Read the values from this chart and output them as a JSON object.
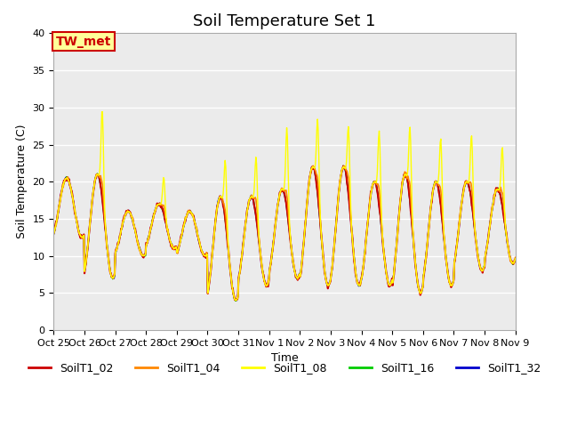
{
  "title": "Soil Temperature Set 1",
  "xlabel": "Time",
  "ylabel": "Soil Temperature (C)",
  "ylim": [
    0,
    40
  ],
  "series_labels": [
    "SoilT1_02",
    "SoilT1_04",
    "SoilT1_08",
    "SoilT1_16",
    "SoilT1_32"
  ],
  "series_colors": [
    "#cc0000",
    "#ff8800",
    "#ffff00",
    "#00cc00",
    "#0000cc"
  ],
  "xtick_labels": [
    "Oct 25",
    "Oct 26",
    "Oct 27",
    "Oct 28",
    "Oct 29",
    "Oct 30",
    "Oct 31",
    "Nov 1",
    "Nov 2",
    "Nov 3",
    "Nov 4",
    "Nov 5",
    "Nov 6",
    "Nov 7",
    "Nov 8",
    "Nov 9"
  ],
  "n_days": 15,
  "n_per_day": 48,
  "annotation_text": "TW_met",
  "annotation_color": "#cc0000",
  "annotation_bg": "#ffff99",
  "bg_color": "#ebebeb",
  "title_fontsize": 13,
  "legend_fontsize": 9,
  "axis_fontsize": 9,
  "tick_fontsize": 8
}
